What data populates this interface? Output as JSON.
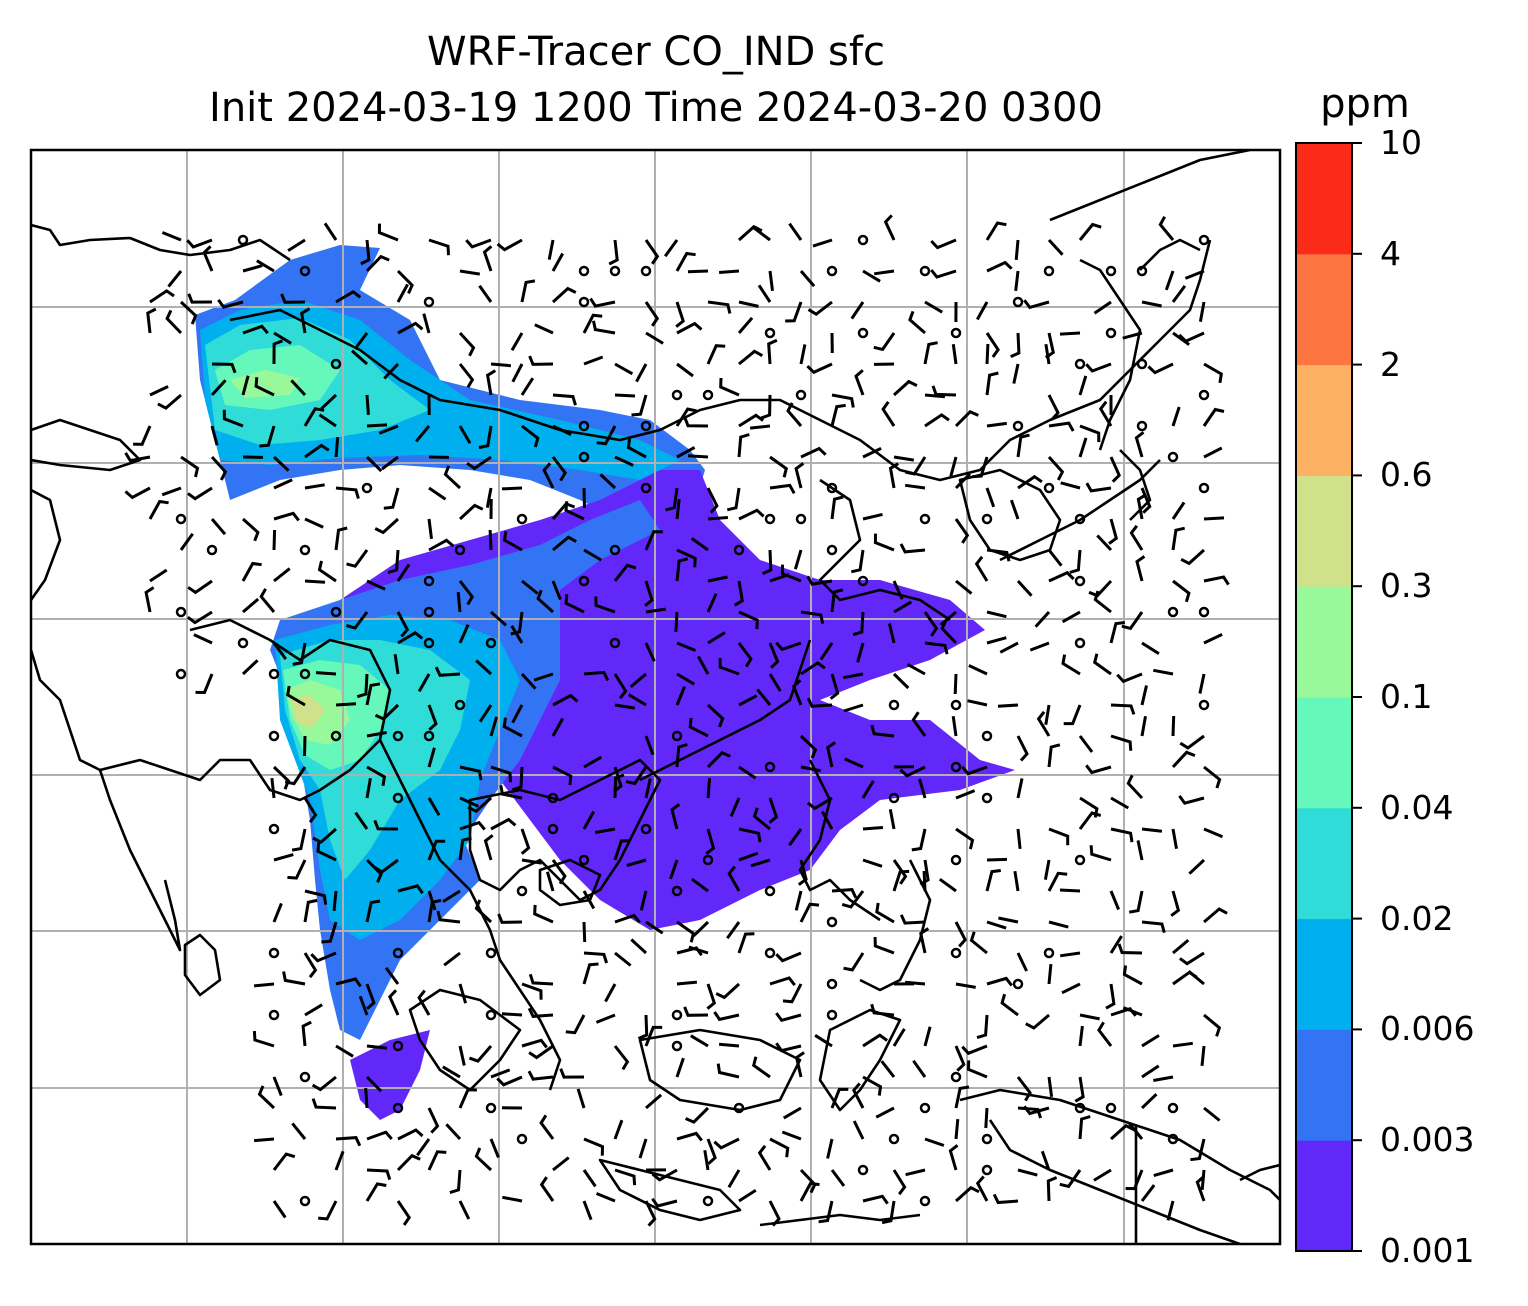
{
  "map": {
    "title_line1": "WRF-Tracer CO_IND sfc",
    "title_line2": "Init 2024-03-19 1200 Time 2024-03-20 0300",
    "colorbar": {
      "unit": "ppm",
      "levels": [
        "0.001",
        "0.003",
        "0.006",
        "0.02",
        "0.04",
        "0.1",
        "0.3",
        "0.6",
        "2",
        "4",
        "10"
      ],
      "colors": [
        "#6228fa",
        "#3374f5",
        "#00b0ee",
        "#2fdcd7",
        "#66f8bb",
        "#98f89a",
        "#d1e08a",
        "#fdb263",
        "#fd7540",
        "#fc2a18"
      ]
    },
    "style": {
      "gridline_color": "#b0b0b0",
      "coastline_color": "#000000",
      "barb_color": "#000000",
      "background": "#ffffff"
    }
  }
}
